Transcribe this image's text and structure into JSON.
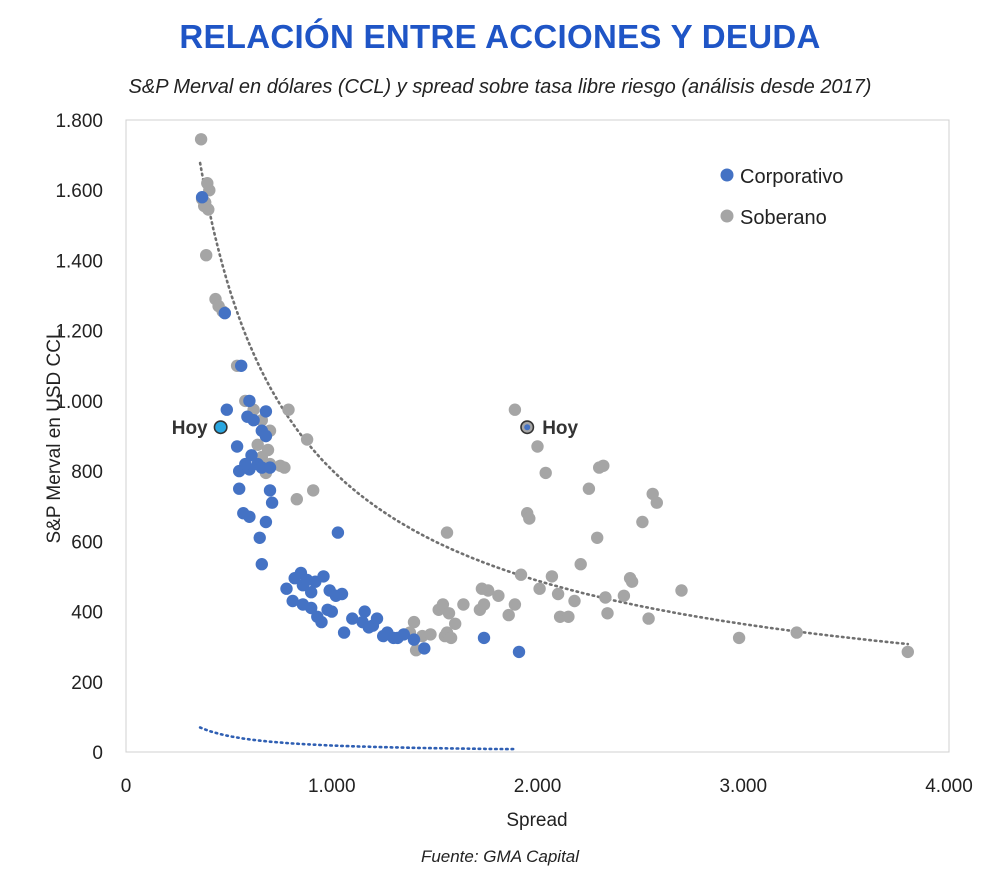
{
  "title": "RELACIÓN ENTRE ACCIONES Y DEUDA",
  "subtitle": "S&P Merval en dólares (CCL) y spread sobre tasa libre riesgo (análisis desde 2017)",
  "source": "Fuente: GMA Capital",
  "chart_data": {
    "type": "scatter",
    "xlabel": "Spread",
    "ylabel": "S&P Merval en USD CCL",
    "xlim": [
      0,
      4000
    ],
    "ylim": [
      0,
      1800
    ],
    "xticks": [
      0,
      1000,
      2000,
      3000,
      4000
    ],
    "xtick_labels": [
      "0",
      "1.000",
      "2.000",
      "3.000",
      "4.000"
    ],
    "yticks": [
      0,
      200,
      400,
      600,
      800,
      1000,
      1200,
      1400,
      1600,
      1800
    ],
    "ytick_labels": [
      "0",
      "200",
      "400",
      "600",
      "800",
      "1.000",
      "1.200",
      "1.400",
      "1.600",
      "1.800"
    ],
    "grid": false,
    "legend_position": "top-right",
    "colors": {
      "corporativo": "#4472c4",
      "soberano": "#a5a5a5",
      "hoy_corporativo": "#29a6e0",
      "trend_corporativo": "#2f5fb3",
      "trend_soberano": "#707070"
    },
    "series": [
      {
        "name": "Soberano",
        "points": [
          [
            365,
            1745
          ],
          [
            370,
            1575
          ],
          [
            380,
            1555
          ],
          [
            395,
            1620
          ],
          [
            400,
            1545
          ],
          [
            405,
            1600
          ],
          [
            385,
            1565
          ],
          [
            390,
            1415
          ],
          [
            435,
            1290
          ],
          [
            450,
            1270
          ],
          [
            470,
            1255
          ],
          [
            480,
            1250
          ],
          [
            540,
            1100
          ],
          [
            580,
            1000
          ],
          [
            620,
            975
          ],
          [
            660,
            945
          ],
          [
            700,
            915
          ],
          [
            680,
            900
          ],
          [
            640,
            875
          ],
          [
            690,
            860
          ],
          [
            660,
            840
          ],
          [
            670,
            810
          ],
          [
            700,
            820
          ],
          [
            680,
            795
          ],
          [
            750,
            815
          ],
          [
            770,
            810
          ],
          [
            790,
            975
          ],
          [
            830,
            720
          ],
          [
            880,
            890
          ],
          [
            910,
            745
          ],
          [
            1400,
            370
          ],
          [
            1380,
            340
          ],
          [
            1410,
            290
          ],
          [
            1440,
            330
          ],
          [
            1480,
            335
          ],
          [
            1520,
            405
          ],
          [
            1540,
            420
          ],
          [
            1550,
            330
          ],
          [
            1560,
            340
          ],
          [
            1570,
            395
          ],
          [
            1580,
            325
          ],
          [
            1600,
            365
          ],
          [
            1560,
            625
          ],
          [
            1640,
            420
          ],
          [
            1720,
            405
          ],
          [
            1740,
            420
          ],
          [
            1760,
            460
          ],
          [
            1730,
            465
          ],
          [
            1810,
            445
          ],
          [
            1860,
            390
          ],
          [
            1890,
            420
          ],
          [
            1890,
            975
          ],
          [
            1920,
            505
          ],
          [
            1950,
            680
          ],
          [
            1960,
            665
          ],
          [
            2000,
            870
          ],
          [
            2040,
            795
          ],
          [
            2010,
            465
          ],
          [
            2070,
            500
          ],
          [
            2100,
            450
          ],
          [
            2110,
            385
          ],
          [
            2150,
            385
          ],
          [
            2180,
            430
          ],
          [
            2210,
            535
          ],
          [
            2250,
            750
          ],
          [
            2290,
            610
          ],
          [
            2300,
            810
          ],
          [
            2320,
            815
          ],
          [
            2330,
            440
          ],
          [
            2340,
            395
          ],
          [
            2420,
            445
          ],
          [
            2450,
            495
          ],
          [
            2460,
            485
          ],
          [
            2510,
            655
          ],
          [
            2540,
            380
          ],
          [
            2560,
            735
          ],
          [
            2580,
            710
          ],
          [
            2700,
            460
          ],
          [
            2980,
            325
          ],
          [
            3260,
            340
          ],
          [
            3800,
            285
          ]
        ]
      },
      {
        "name": "Corporativo",
        "points": [
          [
            370,
            1580
          ],
          [
            480,
            1250
          ],
          [
            560,
            1100
          ],
          [
            600,
            1000
          ],
          [
            490,
            975
          ],
          [
            590,
            955
          ],
          [
            620,
            945
          ],
          [
            660,
            915
          ],
          [
            680,
            970
          ],
          [
            680,
            900
          ],
          [
            540,
            870
          ],
          [
            610,
            845
          ],
          [
            640,
            820
          ],
          [
            600,
            805
          ],
          [
            660,
            810
          ],
          [
            700,
            810
          ],
          [
            550,
            800
          ],
          [
            580,
            820
          ],
          [
            700,
            745
          ],
          [
            710,
            710
          ],
          [
            550,
            750
          ],
          [
            570,
            680
          ],
          [
            600,
            670
          ],
          [
            680,
            655
          ],
          [
            650,
            610
          ],
          [
            660,
            535
          ],
          [
            780,
            465
          ],
          [
            820,
            495
          ],
          [
            850,
            510
          ],
          [
            860,
            475
          ],
          [
            880,
            490
          ],
          [
            900,
            455
          ],
          [
            920,
            485
          ],
          [
            960,
            500
          ],
          [
            990,
            460
          ],
          [
            1020,
            445
          ],
          [
            1050,
            450
          ],
          [
            810,
            430
          ],
          [
            860,
            420
          ],
          [
            900,
            410
          ],
          [
            930,
            385
          ],
          [
            950,
            370
          ],
          [
            980,
            405
          ],
          [
            1000,
            400
          ],
          [
            1030,
            625
          ],
          [
            1060,
            340
          ],
          [
            1100,
            380
          ],
          [
            1150,
            370
          ],
          [
            1160,
            400
          ],
          [
            1180,
            355
          ],
          [
            1200,
            360
          ],
          [
            1220,
            380
          ],
          [
            1250,
            330
          ],
          [
            1270,
            340
          ],
          [
            1300,
            325
          ],
          [
            1320,
            325
          ],
          [
            1350,
            335
          ],
          [
            1400,
            320
          ],
          [
            1450,
            295
          ],
          [
            1740,
            325
          ],
          [
            1910,
            285
          ]
        ]
      }
    ],
    "highlights": [
      {
        "label": "Hoy",
        "series": "Corporativo",
        "x": 460,
        "y": 925
      },
      {
        "label": "Hoy",
        "series": "Soberano",
        "x": 1950,
        "y": 925
      }
    ],
    "trendlines": [
      {
        "series": "Corporativo",
        "type": "power",
        "a": 147000,
        "b": -1.3,
        "x_range": [
          360,
          1900
        ]
      },
      {
        "series": "Soberano",
        "type": "power",
        "a": 116200,
        "b": -0.72,
        "x_range": [
          360,
          3800
        ]
      }
    ]
  }
}
